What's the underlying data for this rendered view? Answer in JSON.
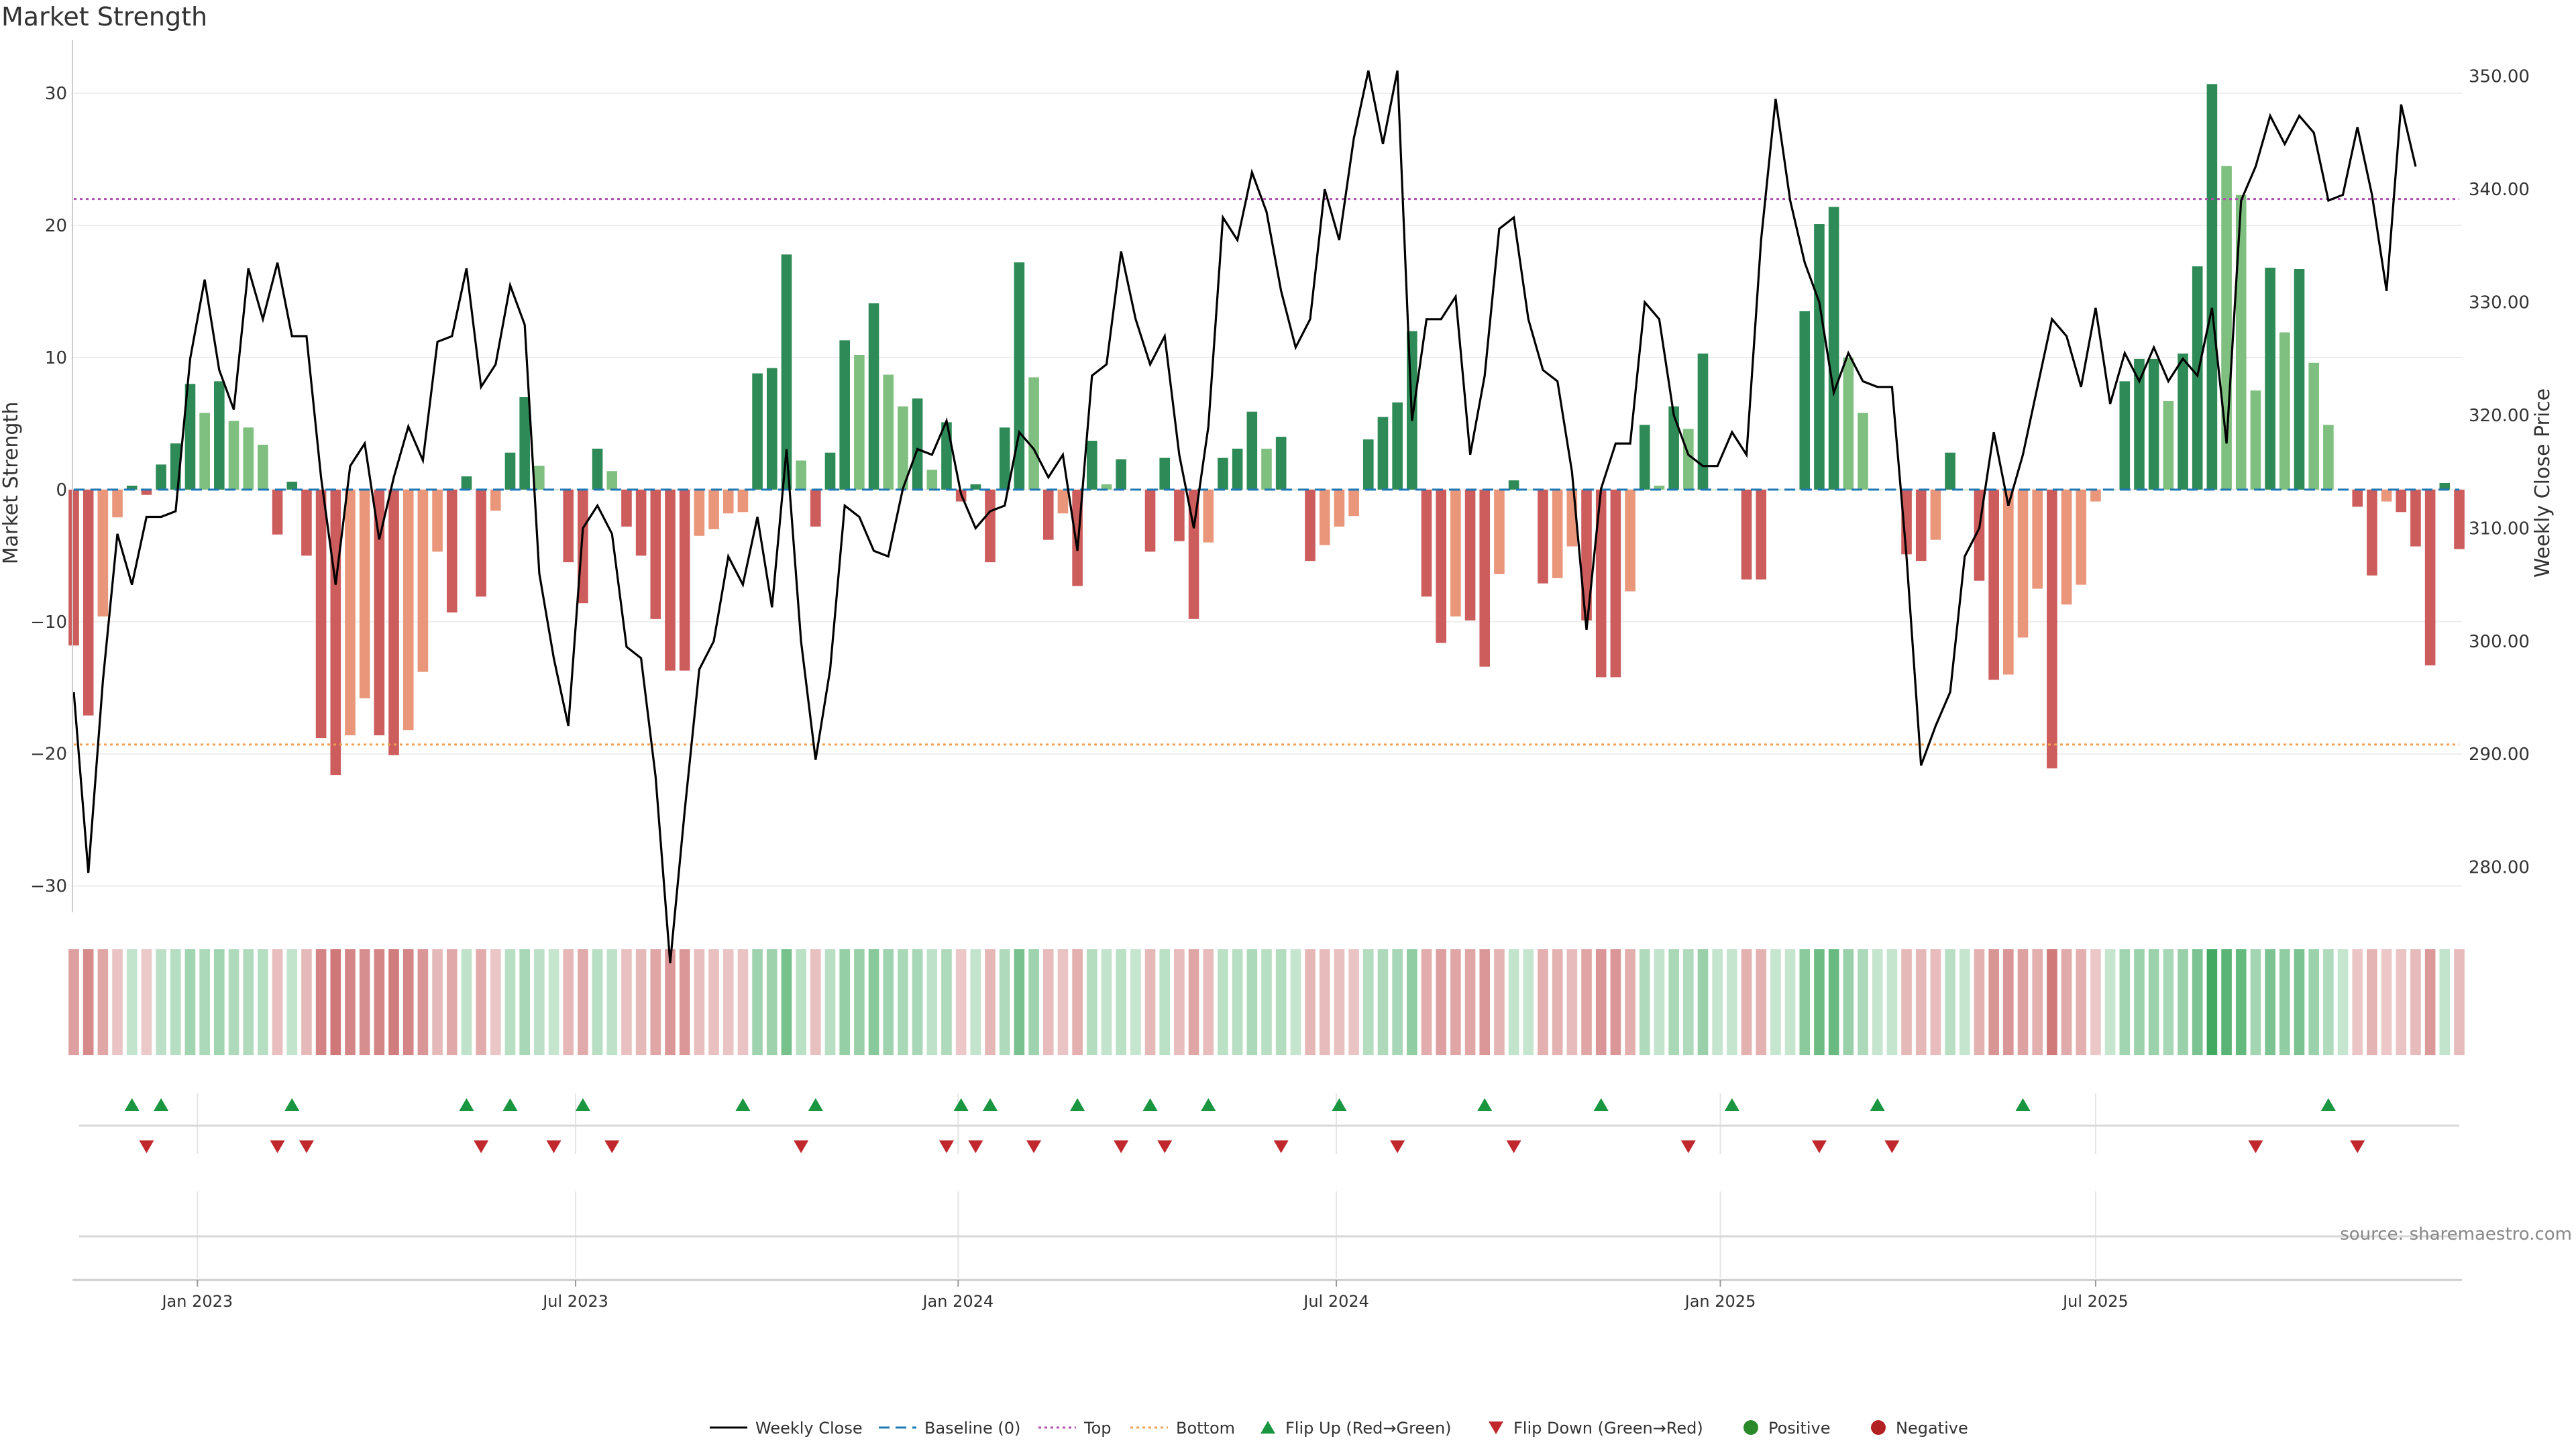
{
  "title": "Market Strength",
  "source": "source: sharemaestro.com",
  "colors": {
    "pos_strong": "#2e8b57",
    "pos_light": "#7fbf7f",
    "neg_strong": "#cd5c5c",
    "neg_light": "#e9967a",
    "price_line": "#000000",
    "top_line": "#b04fb0",
    "bottom_line": "#f0a050",
    "baseline": "#1f77b4",
    "flip_up": "#1a9641",
    "flip_down": "#c0282d",
    "grid": "#eeeeee"
  },
  "chart_data": {
    "type": "bar+line",
    "title": "Market Strength",
    "ylabel_left": "Market Strength",
    "ylabel_right": "Weekly Close Price",
    "y_left_ticks": [
      "30",
      "20",
      "10",
      "0",
      "−10",
      "−20",
      "−30"
    ],
    "y_left_tick_values": [
      30,
      20,
      10,
      0,
      -10,
      -20,
      -30
    ],
    "ylim_left": [
      -32,
      33
    ],
    "y_right_ticks": [
      "350.00",
      "340.00",
      "330.00",
      "320.00",
      "310.00",
      "300.00",
      "290.00",
      "280.00"
    ],
    "y_right_tick_values": [
      350,
      340,
      330,
      320,
      310,
      300,
      290,
      280
    ],
    "ylim_right": [
      276,
      352
    ],
    "top_level": 22,
    "bottom_level": -19.3,
    "x_ticks": [
      "Jan 2023",
      "Jul 2023",
      "Jan 2024",
      "Jul 2024",
      "Jan 2025",
      "Jul 2025"
    ],
    "x_tick_weeks": [
      8.5,
      34.5,
      60.8,
      86.8,
      113.2,
      139
    ],
    "strength": [
      -11.8,
      -17.1,
      -9.6,
      -2.1,
      0.3,
      -0.4,
      1.9,
      3.5,
      8.0,
      5.8,
      8.2,
      5.2,
      4.7,
      3.4,
      -3.4,
      0.6,
      -5.0,
      -18.8,
      -21.6,
      -18.6,
      -15.8,
      -18.6,
      -20.1,
      -18.2,
      -13.8,
      -4.7,
      -9.3,
      1.0,
      -8.1,
      -1.6,
      2.8,
      7.0,
      1.8,
      0,
      -5.5,
      -8.6,
      3.1,
      1.4,
      -2.8,
      -5.0,
      -9.8,
      -13.7,
      -13.7,
      -3.5,
      -3.0,
      -1.8,
      -1.7,
      8.8,
      9.2,
      17.8,
      2.2,
      -2.8,
      2.8,
      11.3,
      10.2,
      14.1,
      8.7,
      6.3,
      6.9,
      1.5,
      5.1,
      -0.9,
      0.4,
      -5.5,
      4.7,
      17.2,
      8.5,
      -3.8,
      -1.8,
      -7.3,
      3.7,
      0.4,
      2.3,
      0,
      -4.7,
      2.4,
      -3.9,
      -9.8,
      -4.0,
      2.4,
      3.1,
      5.9,
      3.1,
      4.0,
      0,
      -5.4,
      -4.2,
      -2.8,
      -2.0,
      3.8,
      5.5,
      6.6,
      12.0,
      -8.1,
      -11.6,
      -9.6,
      -9.9,
      -13.4,
      -6.4,
      0.7,
      0,
      -7.1,
      -6.7,
      -4.3,
      -9.9,
      -14.2,
      -14.2,
      -7.7,
      4.9,
      0.3,
      6.3,
      4.6,
      10.3,
      0,
      0,
      -6.8,
      -6.8,
      0,
      0,
      13.5,
      20.1,
      21.4,
      10.0,
      5.8,
      0,
      0,
      -4.9,
      -5.4,
      -3.8,
      2.8,
      0,
      -6.9,
      -14.4,
      -14.0,
      -11.2,
      -7.5,
      -21.1,
      -8.7,
      -7.2,
      -0.9,
      0,
      8.2,
      9.9,
      9.9,
      6.7,
      10.3,
      16.9,
      30.7,
      24.5,
      22.3,
      7.5,
      16.8,
      11.9,
      16.7,
      9.6,
      4.9,
      0,
      -1.3,
      -6.5,
      -0.9,
      -1.7,
      -4.3,
      -13.3,
      0.5,
      -4.5
    ],
    "weekly_close": [
      295.5,
      279.5,
      296.5,
      309.5,
      305.0,
      311.0,
      311.0,
      311.5,
      325.0,
      332.0,
      324.0,
      320.5,
      333.0,
      328.5,
      333.5,
      327.0,
      327.0,
      314.5,
      305.0,
      315.5,
      317.5,
      309.0,
      314.5,
      319.0,
      316.0,
      326.5,
      327.0,
      333.0,
      322.5,
      324.5,
      331.5,
      328.0,
      306.0,
      298.5,
      292.5,
      310.0,
      312.0,
      309.5,
      299.5,
      298.5,
      288.0,
      271.5,
      285.0,
      297.5,
      300.0,
      307.5,
      305.0,
      311.0,
      303.0,
      317.0,
      300.0,
      289.5,
      297.5,
      312.0,
      311.0,
      308.0,
      307.5,
      313.5,
      317.0,
      316.5,
      319.5,
      313.0,
      310.0,
      311.5,
      312.0,
      318.5,
      317.0,
      314.5,
      316.5,
      308.0,
      323.5,
      324.5,
      334.5,
      328.5,
      324.5,
      327.0,
      316.5,
      310.0,
      319.0,
      337.5,
      335.5,
      341.5,
      338.0,
      331.0,
      326.0,
      328.5,
      340.0,
      335.5,
      344.5,
      350.5,
      344.0,
      350.5,
      319.5,
      328.5,
      328.5,
      330.5,
      316.5,
      323.5,
      336.5,
      337.5,
      328.5,
      324.0,
      323.0,
      315.0,
      301.0,
      313.5,
      317.5,
      317.5,
      330.0,
      328.5,
      320.0,
      316.5,
      315.5,
      315.5,
      318.5,
      316.5,
      335.5,
      348.0,
      339.0,
      333.5,
      330.0,
      322.0,
      325.5,
      323.0,
      322.5,
      322.5,
      307.5,
      289.0,
      292.5,
      295.5,
      307.5,
      310.0,
      318.5,
      312.0,
      316.5,
      322.5,
      328.5,
      327.0,
      322.5,
      329.5,
      321.0,
      325.5,
      323.0,
      326.0,
      323.0,
      325.0,
      323.5,
      329.5,
      317.5,
      339.0,
      342.0,
      346.5,
      344.0,
      346.5,
      345.0,
      339.0,
      339.5,
      345.5,
      339.5,
      331.0,
      347.5,
      342.0
    ],
    "heat_strip": "Market Strength per week (same values as bars)",
    "flip_up_weeks": [
      4,
      6,
      15,
      27,
      30,
      35,
      46,
      51,
      61,
      63,
      69,
      74,
      78,
      87,
      97,
      105,
      114,
      124,
      134,
      155
    ],
    "flip_down_weeks": [
      5,
      14,
      16,
      28,
      33,
      37,
      50,
      60,
      62,
      66,
      72,
      75,
      83,
      91,
      99,
      111,
      120,
      125,
      150,
      157
    ],
    "legend": [
      "Weekly Close",
      "Baseline (0)",
      "Top",
      "Bottom",
      "Flip Up (Red→Green)",
      "Flip Down (Green→Red)",
      "Positive",
      "Negative"
    ]
  }
}
